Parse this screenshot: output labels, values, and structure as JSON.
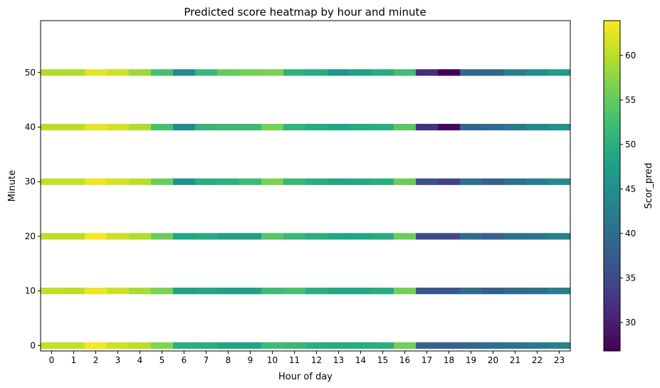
{
  "chart_data": {
    "type": "heatmap",
    "title": "Predicted score heatmap by hour and minute",
    "xlabel": "Hour of day",
    "ylabel": "Minute",
    "x": [
      0,
      1,
      2,
      3,
      4,
      5,
      6,
      7,
      8,
      9,
      10,
      11,
      12,
      13,
      14,
      15,
      16,
      17,
      18,
      19,
      20,
      21,
      22,
      23
    ],
    "y": [
      0,
      10,
      20,
      30,
      40,
      50
    ],
    "xlim": [
      -0.5,
      23.5
    ],
    "ylim": [
      -1,
      59.5
    ],
    "x_ticks": [
      "0",
      "1",
      "2",
      "3",
      "4",
      "5",
      "6",
      "7",
      "8",
      "9",
      "10",
      "11",
      "12",
      "13",
      "14",
      "15",
      "16",
      "17",
      "18",
      "19",
      "20",
      "21",
      "22",
      "23"
    ],
    "y_ticks": [
      "0",
      "10",
      "20",
      "30",
      "40",
      "50"
    ],
    "grid": false,
    "colormap": "viridis",
    "colorbar": {
      "label": "Scor_pred",
      "range": [
        26.8,
        63.9
      ],
      "ticks": [
        "30",
        "35",
        "40",
        "45",
        "50",
        "55",
        "60"
      ]
    },
    "values": [
      [
        60.5,
        60.5,
        63.5,
        61.0,
        60.0,
        57.0,
        50.0,
        50.0,
        48.5,
        48.5,
        52.0,
        51.5,
        50.0,
        49.5,
        49.5,
        50.0,
        56.0,
        38.5,
        38.5,
        39.0,
        40.0,
        41.0,
        42.0,
        43.0
      ],
      [
        60.5,
        60.0,
        63.0,
        61.0,
        59.0,
        56.5,
        48.0,
        48.5,
        47.5,
        47.5,
        52.0,
        53.0,
        50.0,
        48.5,
        48.5,
        49.5,
        56.0,
        37.0,
        37.0,
        39.5,
        38.0,
        39.5,
        40.5,
        42.5
      ],
      [
        60.0,
        60.0,
        63.5,
        61.0,
        59.5,
        55.5,
        48.5,
        49.5,
        47.5,
        47.5,
        54.0,
        51.5,
        50.0,
        48.5,
        48.5,
        49.5,
        55.5,
        35.0,
        35.0,
        39.5,
        38.0,
        40.5,
        41.0,
        43.0
      ],
      [
        60.5,
        60.5,
        63.0,
        61.5,
        60.0,
        55.5,
        45.5,
        50.0,
        50.5,
        52.0,
        56.5,
        51.5,
        50.0,
        48.5,
        49.0,
        50.0,
        55.5,
        36.0,
        34.0,
        40.0,
        38.0,
        40.5,
        42.5,
        44.5
      ],
      [
        60.0,
        60.0,
        62.5,
        61.5,
        59.5,
        53.0,
        44.5,
        51.0,
        52.0,
        52.0,
        56.0,
        51.0,
        49.5,
        48.5,
        49.5,
        50.0,
        54.5,
        32.0,
        27.5,
        39.0,
        39.5,
        42.0,
        44.0,
        45.5
      ],
      [
        59.5,
        59.5,
        62.5,
        61.0,
        58.5,
        53.0,
        44.0,
        51.5,
        55.0,
        56.0,
        56.5,
        50.5,
        49.5,
        46.0,
        48.0,
        49.5,
        52.5,
        31.5,
        26.8,
        39.0,
        39.0,
        42.5,
        45.0,
        47.0
      ]
    ]
  }
}
